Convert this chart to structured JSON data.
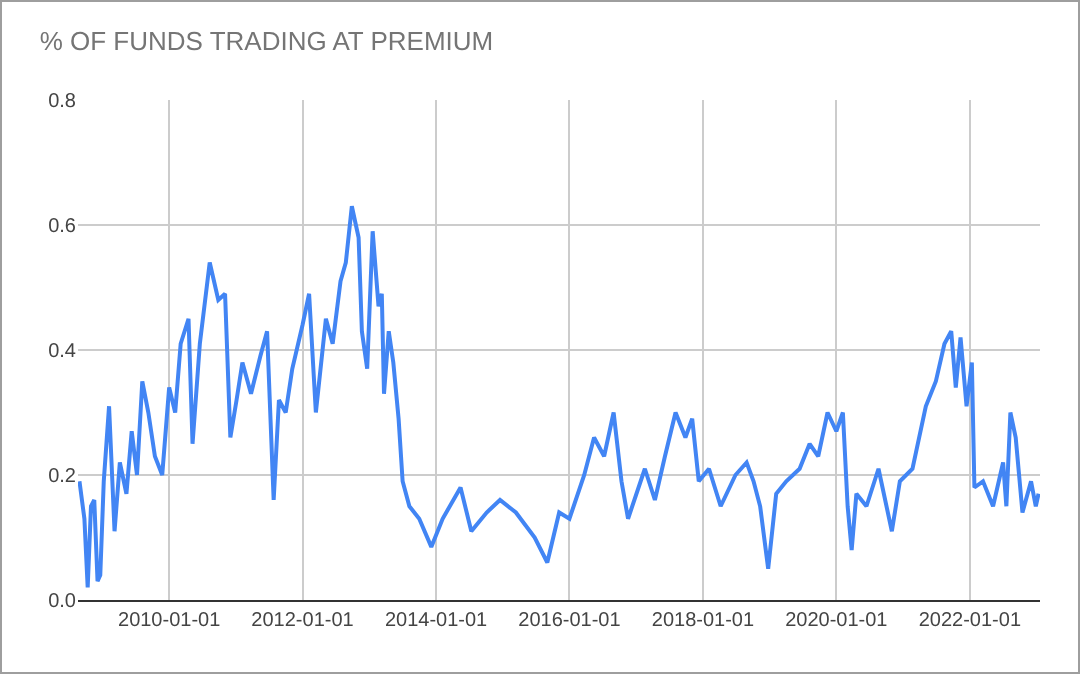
{
  "chart_data": {
    "type": "line",
    "title": "% OF FUNDS TRADING AT PREMIUM",
    "x": [
      "2008-08-28",
      "2008-09-24",
      "2008-10-12",
      "2008-10-30",
      "2008-11-17",
      "2008-12-05",
      "2008-12-20",
      "2009-01-08",
      "2009-02-06",
      "2009-03-08",
      "2009-04-06",
      "2009-05-12",
      "2009-06-10",
      "2009-07-09",
      "2009-08-07",
      "2009-09-09",
      "2009-10-15",
      "2009-11-24",
      "2010-01-01",
      "2010-02-03",
      "2010-03-05",
      "2010-04-17",
      "2010-05-09",
      "2010-06-18",
      "2010-08-11",
      "2010-09-27",
      "2010-11-03",
      "2010-12-02",
      "2011-01-05",
      "2011-02-06",
      "2011-03-25",
      "2011-05-15",
      "2011-06-21",
      "2011-07-27",
      "2011-08-25",
      "2011-10-01",
      "2011-11-06",
      "2012-01-01",
      "2012-02-06",
      "2012-03-14",
      "2012-05-08",
      "2012-06-14",
      "2012-07-27",
      "2012-08-25",
      "2012-09-27",
      "2012-11-03",
      "2012-11-21",
      "2012-12-20",
      "2013-01-19",
      "2013-02-20",
      "2013-03-10",
      "2013-03-22",
      "2013-04-17",
      "2013-05-12",
      "2013-06-10",
      "2013-07-02",
      "2013-08-08",
      "2013-10-01",
      "2013-12-06",
      "2014-02-06",
      "2014-05-15",
      "2014-07-13",
      "2014-10-05",
      "2014-12-17",
      "2015-03-14",
      "2015-06-25",
      "2015-09-02",
      "2015-11-06",
      "2016-01-01",
      "2016-03-22",
      "2016-05-15",
      "2016-07-09",
      "2016-08-30",
      "2016-10-12",
      "2016-11-17",
      "2017-02-17",
      "2017-04-13",
      "2017-06-07",
      "2017-08-04",
      "2017-09-27",
      "2017-11-03",
      "2017-12-09",
      "2018-02-03",
      "2018-04-08",
      "2018-06-28",
      "2018-08-28",
      "2018-10-05",
      "2018-11-10",
      "2018-12-24",
      "2019-02-06",
      "2019-04-02",
      "2019-06-14",
      "2019-08-08",
      "2019-09-24",
      "2019-11-14",
      "2020-01-01",
      "2020-02-06",
      "2020-03-03",
      "2020-03-25",
      "2020-04-20",
      "2020-06-14",
      "2020-08-19",
      "2020-10-31",
      "2020-12-14",
      "2021-02-21",
      "2021-05-05",
      "2021-06-29",
      "2021-08-15",
      "2021-09-21",
      "2021-10-16",
      "2021-11-11",
      "2021-12-14",
      "2022-01-12",
      "2022-01-26",
      "2022-03-14",
      "2022-05-08",
      "2022-07-02",
      "2022-07-20",
      "2022-08-11",
      "2022-09-09",
      "2022-10-16",
      "2022-12-02",
      "2022-12-28",
      "2023-01-12"
    ],
    "series": [
      {
        "color": "#4285f4",
        "values": [
          0.19,
          0.13,
          0.02,
          0.15,
          0.16,
          0.03,
          0.04,
          0.19,
          0.31,
          0.11,
          0.22,
          0.17,
          0.27,
          0.2,
          0.35,
          0.3,
          0.23,
          0.2,
          0.34,
          0.3,
          0.41,
          0.45,
          0.25,
          0.41,
          0.54,
          0.48,
          0.49,
          0.26,
          0.32,
          0.38,
          0.33,
          0.39,
          0.43,
          0.16,
          0.32,
          0.3,
          0.37,
          0.44,
          0.49,
          0.3,
          0.45,
          0.41,
          0.51,
          0.54,
          0.63,
          0.58,
          0.43,
          0.37,
          0.59,
          0.47,
          0.49,
          0.33,
          0.43,
          0.38,
          0.29,
          0.19,
          0.15,
          0.13,
          0.085,
          0.13,
          0.18,
          0.11,
          0.14,
          0.16,
          0.14,
          0.1,
          0.06,
          0.14,
          0.13,
          0.2,
          0.26,
          0.23,
          0.3,
          0.19,
          0.13,
          0.21,
          0.16,
          0.23,
          0.3,
          0.26,
          0.29,
          0.19,
          0.21,
          0.15,
          0.2,
          0.22,
          0.19,
          0.15,
          0.05,
          0.17,
          0.19,
          0.21,
          0.25,
          0.23,
          0.3,
          0.27,
          0.3,
          0.15,
          0.08,
          0.17,
          0.15,
          0.21,
          0.11,
          0.19,
          0.21,
          0.31,
          0.35,
          0.41,
          0.43,
          0.34,
          0.42,
          0.31,
          0.38,
          0.18,
          0.19,
          0.15,
          0.22,
          0.15,
          0.3,
          0.26,
          0.14,
          0.19,
          0.15,
          0.17
        ]
      }
    ],
    "xlim": [
      "2008-08-20",
      "2023-01-20"
    ],
    "xticks": [
      "2010-01-01",
      "2012-01-01",
      "2014-01-01",
      "2016-01-01",
      "2018-01-01",
      "2020-01-01",
      "2022-01-01"
    ],
    "ylim": [
      0,
      0.8
    ],
    "yticks": [
      {
        "value": 0,
        "label": "0.0"
      },
      {
        "value": 0.2,
        "label": "0.2"
      },
      {
        "value": 0.4,
        "label": "0.4"
      },
      {
        "value": 0.6,
        "label": "0.6"
      },
      {
        "value": 0.8,
        "label": "0.8"
      }
    ],
    "grid": true,
    "marker": "none",
    "line_style": "solid"
  }
}
